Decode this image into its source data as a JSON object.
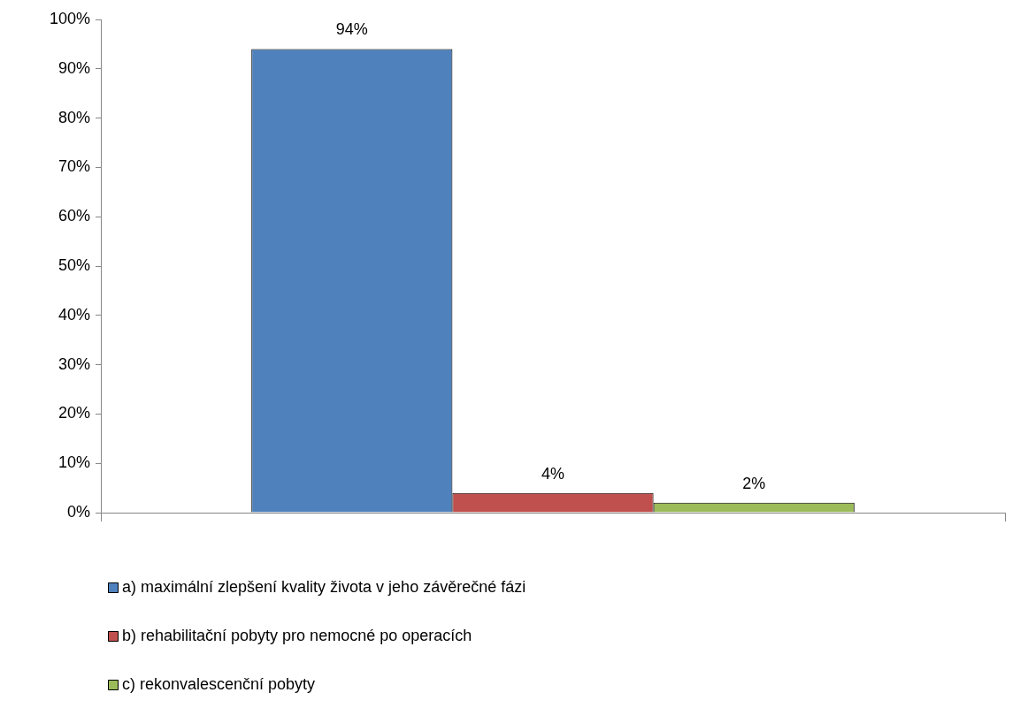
{
  "chart_data": {
    "type": "bar",
    "categories": [
      null
    ],
    "series": [
      {
        "name": "a) maximální zlepšení kvality života v jeho závěrečné fázi",
        "color": "#4f81bd",
        "values": [
          94
        ],
        "value_labels": [
          "94%"
        ]
      },
      {
        "name": "b) rehabilitační pobyty pro nemocné po operacích",
        "color": "#c0504d",
        "values": [
          4
        ],
        "value_labels": [
          "4%"
        ]
      },
      {
        "name": "c) rekonvalescenční pobyty",
        "color": "#9bbb59",
        "values": [
          2
        ],
        "value_labels": [
          "2%"
        ]
      }
    ],
    "ylim": [
      0,
      100
    ],
    "yticks": [
      {
        "value": 0,
        "label": "0%"
      },
      {
        "value": 10,
        "label": "10%"
      },
      {
        "value": 20,
        "label": "20%"
      },
      {
        "value": 30,
        "label": "30%"
      },
      {
        "value": 40,
        "label": "40%"
      },
      {
        "value": 50,
        "label": "50%"
      },
      {
        "value": 60,
        "label": "60%"
      },
      {
        "value": 70,
        "label": "70%"
      },
      {
        "value": 80,
        "label": "80%"
      },
      {
        "value": 90,
        "label": "90%"
      },
      {
        "value": 100,
        "label": "100%"
      }
    ],
    "grid": false,
    "legend": "bottom left"
  }
}
